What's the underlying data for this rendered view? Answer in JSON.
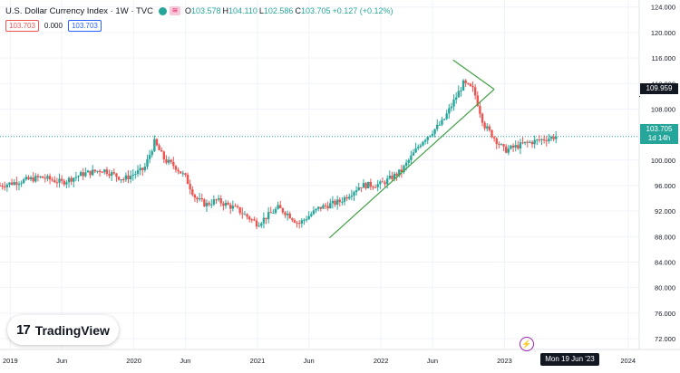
{
  "header": {
    "title": "U.S. Dollar Currency Index · 1W · TVC",
    "flag_icon": "flag-icon",
    "ohlc": [
      {
        "k": "O",
        "v": "103.578"
      },
      {
        "k": "H",
        "v": "104.110"
      },
      {
        "k": "L",
        "v": "102.586"
      },
      {
        "k": "C",
        "v": "103.705"
      }
    ],
    "change": "+0.127 (+0.12%)"
  },
  "indicators": {
    "box1": "103.703",
    "plain": "0.000",
    "box2": "103.703"
  },
  "price_labels": {
    "level": "109.959",
    "last_price": "103.705",
    "countdown": "1d 14h"
  },
  "cursor_date": "Mon 19 Jun '23",
  "logo": {
    "text": "TradingView",
    "mark": "17"
  },
  "colors": {
    "up": "#26a69a",
    "down": "#ef5350",
    "trend": "#43a047",
    "last": "#26a69a"
  },
  "chart_data": {
    "type": "candlestick",
    "title": "U.S. Dollar Currency Index · 1W · TVC",
    "ylim": [
      70.3,
      125.1
    ],
    "y_ticks": [
      "124.000",
      "120.000",
      "116.000",
      "112.000",
      "108.000",
      "104.000",
      "100.000",
      "96.000",
      "92.000",
      "88.000",
      "84.000",
      "80.000",
      "76.000",
      "72.000"
    ],
    "x_ticks": [
      "2019",
      "Jun",
      "2020",
      "Jun",
      "2021",
      "Jun",
      "2022",
      "Jun",
      "2023",
      "2024"
    ],
    "series": [
      {
        "name": "U.S. Dollar Currency Index",
        "points": [
          {
            "t": "2018-12",
            "v": 96.0
          },
          {
            "t": "2019-02",
            "v": 96.7
          },
          {
            "t": "2019-04",
            "v": 97.3
          },
          {
            "t": "2019-06",
            "v": 96.5
          },
          {
            "t": "2019-08",
            "v": 97.8
          },
          {
            "t": "2019-10",
            "v": 98.5
          },
          {
            "t": "2019-12",
            "v": 97.0
          },
          {
            "t": "2020-02",
            "v": 98.6
          },
          {
            "t": "2020-03",
            "v": 102.8
          },
          {
            "t": "2020-04",
            "v": 100.0
          },
          {
            "t": "2020-05",
            "v": 99.0
          },
          {
            "t": "2020-06",
            "v": 97.3
          },
          {
            "t": "2020-07",
            "v": 94.0
          },
          {
            "t": "2020-08",
            "v": 93.0
          },
          {
            "t": "2020-09",
            "v": 93.7
          },
          {
            "t": "2020-11",
            "v": 92.3
          },
          {
            "t": "2021-01",
            "v": 90.0
          },
          {
            "t": "2021-03",
            "v": 92.5
          },
          {
            "t": "2021-04",
            "v": 91.5
          },
          {
            "t": "2021-05",
            "v": 90.0
          },
          {
            "t": "2021-07",
            "v": 92.5
          },
          {
            "t": "2021-09",
            "v": 93.5
          },
          {
            "t": "2021-11",
            "v": 96.0
          },
          {
            "t": "2022-01",
            "v": 96.2
          },
          {
            "t": "2022-03",
            "v": 98.3
          },
          {
            "t": "2022-05",
            "v": 103.0
          },
          {
            "t": "2022-07",
            "v": 106.0
          },
          {
            "t": "2022-09",
            "v": 112.0
          },
          {
            "t": "2022-10",
            "v": 111.0
          },
          {
            "t": "2022-11",
            "v": 105.5
          },
          {
            "t": "2023-01",
            "v": 101.5
          },
          {
            "t": "2023-03",
            "v": 102.6
          },
          {
            "t": "2023-06",
            "v": 103.7
          }
        ]
      },
      {
        "name": "upper trendline",
        "points": [
          {
            "t": "2022-08",
            "v": 115.7
          },
          {
            "t": "2022-12",
            "v": 111.1
          }
        ]
      },
      {
        "name": "lower trendline",
        "points": [
          {
            "t": "2021-08",
            "v": 87.8
          },
          {
            "t": "2022-12",
            "v": 111.1
          }
        ]
      }
    ],
    "grid": true,
    "last_price": 103.705
  }
}
